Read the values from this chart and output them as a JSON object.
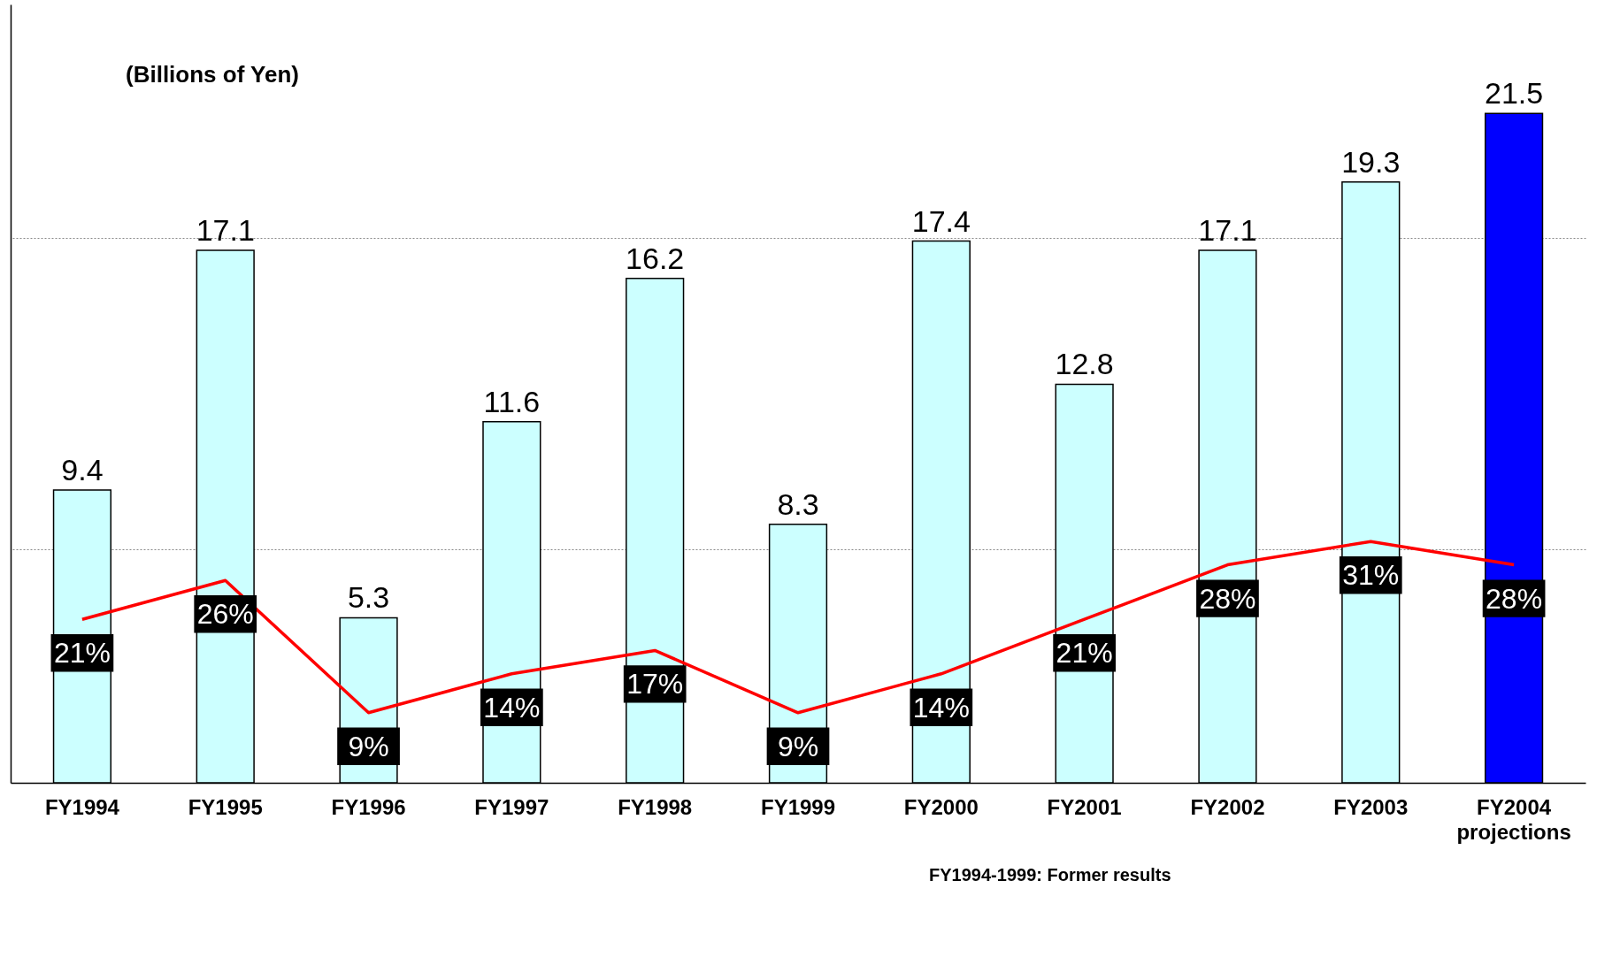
{
  "chart_data": {
    "type": "bar",
    "categories": [
      "FY1994",
      "FY1995",
      "FY1996",
      "FY1997",
      "FY1998",
      "FY1999",
      "FY2000",
      "FY2001",
      "FY2002",
      "FY2003",
      "FY2004 projections"
    ],
    "values": [
      9.4,
      17.1,
      5.3,
      11.6,
      16.2,
      8.3,
      17.4,
      12.8,
      17.1,
      19.3,
      21.5
    ],
    "colors": [
      "#ccffff",
      "#ccffff",
      "#ccffff",
      "#ccffff",
      "#ccffff",
      "#ccffff",
      "#ccffff",
      "#ccffff",
      "#ccffff",
      "#ccffff",
      "#0000ff"
    ],
    "data_labels": true,
    "series": [
      {
        "type": "line",
        "axis": "y2",
        "color": "#ff0000",
        "values": [
          21,
          26,
          9,
          14,
          17,
          9,
          14,
          21,
          28,
          31,
          28
        ],
        "value_labels": [
          "21%",
          "26%",
          "9%",
          "14%",
          "17%",
          "9%",
          "14%",
          "21%",
          "28%",
          "31%",
          "28%"
        ]
      }
    ],
    "ylim": [
      0,
      25
    ],
    "y2lim": [
      0,
      100
    ],
    "y2ticks": [
      {
        "value": 30,
        "label": null
      },
      {
        "value": 70,
        "label": null
      }
    ],
    "grid": "y2",
    "tick_labels": "x",
    "marker": "none",
    "annotations": [
      "(Billions of Yen)",
      "FY1994-1999: Former results"
    ]
  }
}
